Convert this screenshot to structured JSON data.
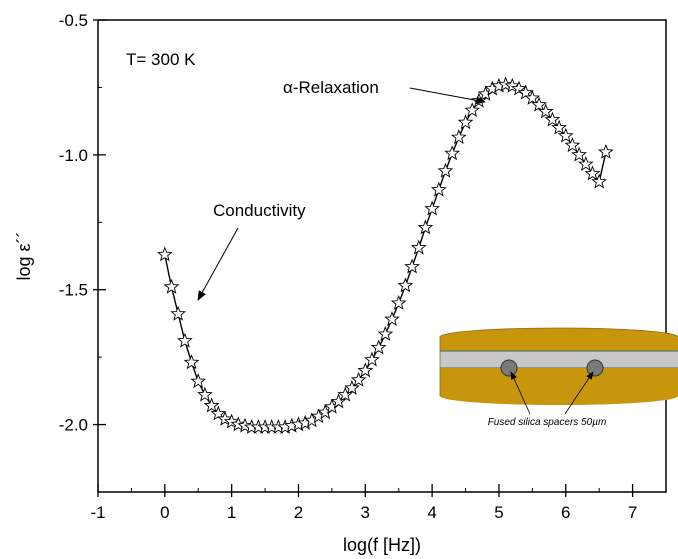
{
  "chart_data": {
    "type": "line",
    "title": "",
    "xlabel": "log(f [Hz])",
    "ylabel": "log ε´´",
    "xlim": [
      -1,
      7.5
    ],
    "ylim": [
      -2.25,
      -0.5
    ],
    "x_ticks": [
      "-1",
      "0",
      "1",
      "2",
      "3",
      "4",
      "5",
      "6",
      "7"
    ],
    "y_ticks": [
      "-0.5",
      "-1.0",
      "-1.5",
      "-2.0"
    ],
    "grid": false,
    "marker": "star",
    "series": [
      {
        "x": [
          0.0,
          0.1,
          0.2,
          0.3,
          0.4,
          0.5,
          0.6,
          0.7,
          0.8,
          0.9,
          1.0,
          1.1,
          1.2,
          1.3,
          1.4,
          1.5,
          1.6,
          1.7,
          1.8,
          1.9,
          2.0,
          2.1,
          2.2,
          2.3,
          2.4,
          2.5,
          2.6,
          2.7,
          2.8,
          2.9,
          3.0,
          3.1,
          3.2,
          3.3,
          3.4,
          3.5,
          3.6,
          3.7,
          3.8,
          3.9,
          4.0,
          4.1,
          4.2,
          4.3,
          4.4,
          4.5,
          4.6,
          4.7,
          4.8,
          4.9,
          5.0,
          5.1,
          5.2,
          5.3,
          5.4,
          5.5,
          5.6,
          5.7,
          5.8,
          5.9,
          6.0,
          6.1,
          6.2,
          6.3,
          6.4,
          6.5,
          6.6
        ],
        "y": [
          -1.37,
          -1.49,
          -1.59,
          -1.69,
          -1.77,
          -1.84,
          -1.89,
          -1.93,
          -1.96,
          -1.98,
          -1.99,
          -2.0,
          -2.005,
          -2.01,
          -2.01,
          -2.01,
          -2.01,
          -2.01,
          -2.01,
          -2.005,
          -2.0,
          -1.995,
          -1.985,
          -1.97,
          -1.955,
          -1.935,
          -1.915,
          -1.89,
          -1.865,
          -1.835,
          -1.8,
          -1.76,
          -1.715,
          -1.665,
          -1.61,
          -1.55,
          -1.485,
          -1.415,
          -1.345,
          -1.27,
          -1.2,
          -1.13,
          -1.06,
          -0.995,
          -0.935,
          -0.88,
          -0.835,
          -0.8,
          -0.775,
          -0.755,
          -0.745,
          -0.74,
          -0.745,
          -0.755,
          -0.77,
          -0.79,
          -0.815,
          -0.84,
          -0.87,
          -0.9,
          -0.93,
          -0.965,
          -1.0,
          -1.035,
          -1.07,
          -1.1,
          -0.99
        ]
      }
    ],
    "annotations": [
      "T= 300 K",
      "α-Relaxation",
      "Conductivity"
    ]
  },
  "inset": {
    "caption": "Fused silica spacers 50µm",
    "colors": {
      "electrode": "#c8960c",
      "electrode_dark": "#a87a05",
      "sample": "#c8c8c8",
      "spacer": "#7a7a7a",
      "edge": "#3a6a6a"
    }
  }
}
